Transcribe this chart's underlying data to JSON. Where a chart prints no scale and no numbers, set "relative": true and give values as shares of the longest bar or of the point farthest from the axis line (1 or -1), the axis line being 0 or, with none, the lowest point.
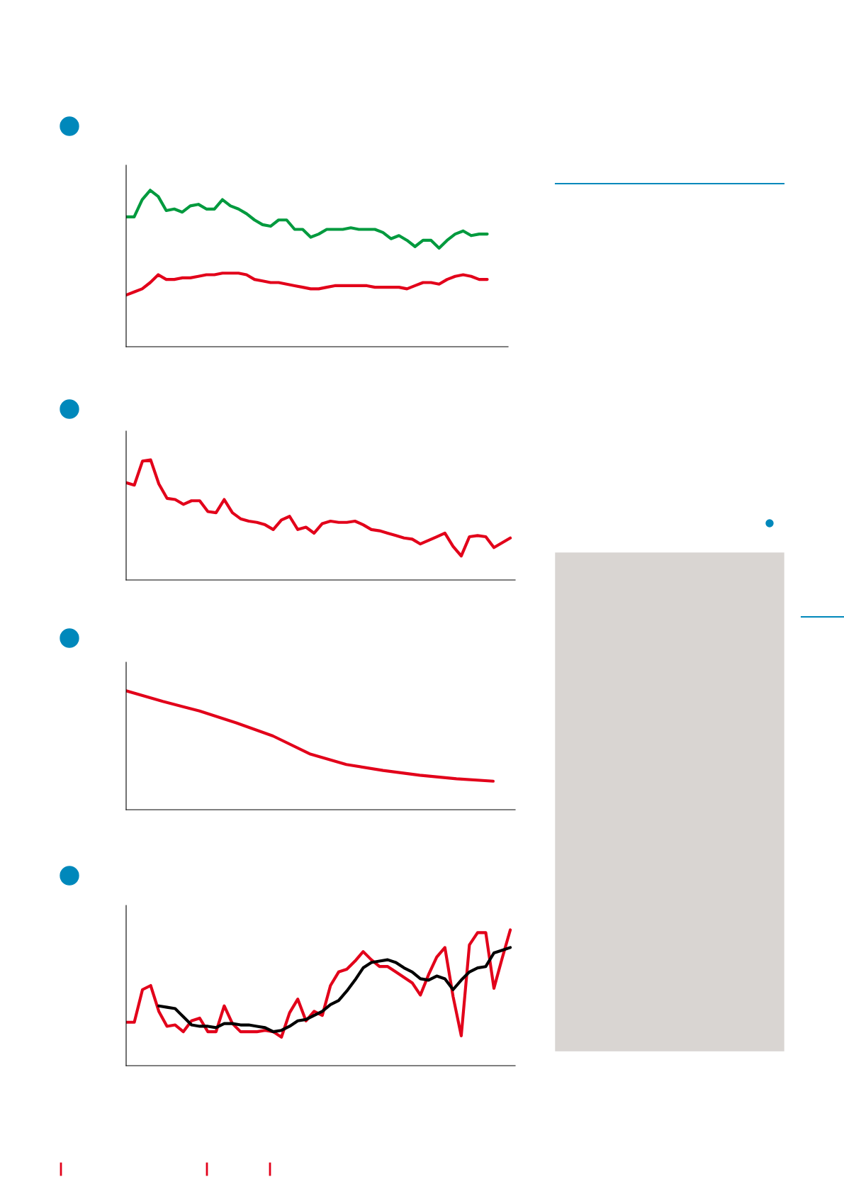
{
  "chart_data": [
    {
      "type": "line",
      "relative": true,
      "categories": [
        null,
        null,
        null,
        null,
        null,
        null,
        null,
        null,
        null,
        null,
        null,
        null,
        null,
        null,
        null,
        null,
        null,
        null,
        null,
        null,
        null,
        null,
        null,
        null,
        null,
        null,
        null,
        null,
        null,
        null,
        null,
        null,
        null,
        null,
        null,
        null,
        null,
        null,
        null,
        null,
        null,
        null,
        null,
        null,
        null,
        null,
        null,
        null
      ],
      "series": [
        {
          "color": "#009a3e",
          "values": [
            0.83,
            0.83,
            0.94,
            1.0,
            0.96,
            0.87,
            0.88,
            0.86,
            0.9,
            0.91,
            0.88,
            0.88,
            0.94,
            0.9,
            0.88,
            0.85,
            0.81,
            0.78,
            0.77,
            0.81,
            0.81,
            0.75,
            0.75,
            0.7,
            0.72,
            0.75,
            0.75,
            0.75,
            0.76,
            0.75,
            0.75,
            0.75,
            0.73,
            0.69,
            0.71,
            0.68,
            0.64,
            0.68,
            0.68,
            0.63,
            0.68,
            0.72,
            0.74,
            0.71,
            0.72,
            0.72,
            null,
            null
          ]
        },
        {
          "color": "#e2001a",
          "values": [
            0.33,
            0.35,
            0.37,
            0.41,
            0.46,
            0.43,
            0.43,
            0.44,
            0.44,
            0.45,
            0.46,
            0.46,
            0.47,
            0.47,
            0.47,
            0.46,
            0.43,
            0.42,
            0.41,
            0.41,
            0.4,
            0.39,
            0.38,
            0.37,
            0.37,
            0.38,
            0.39,
            0.39,
            0.39,
            0.39,
            0.39,
            0.38,
            0.38,
            0.38,
            0.38,
            0.37,
            0.39,
            0.41,
            0.41,
            0.4,
            0.43,
            0.45,
            0.46,
            0.45,
            0.43,
            0.43,
            null,
            null
          ]
        }
      ]
    },
    {
      "type": "line",
      "relative": true,
      "categories": [
        null,
        null,
        null,
        null,
        null,
        null,
        null,
        null,
        null,
        null,
        null,
        null,
        null,
        null,
        null,
        null,
        null,
        null,
        null,
        null,
        null,
        null,
        null,
        null,
        null,
        null,
        null,
        null,
        null,
        null,
        null,
        null,
        null,
        null,
        null,
        null,
        null,
        null,
        null,
        null,
        null,
        null,
        null,
        null,
        null,
        null,
        null,
        null
      ],
      "series": [
        {
          "color": "#e2001a",
          "values": [
            0.81,
            0.79,
            0.99,
            1.0,
            0.8,
            0.68,
            0.67,
            0.63,
            0.66,
            0.66,
            0.57,
            0.56,
            0.67,
            0.56,
            0.51,
            0.49,
            0.48,
            0.46,
            0.42,
            0.5,
            0.53,
            0.42,
            0.44,
            0.39,
            0.47,
            0.49,
            0.48,
            0.48,
            0.49,
            0.46,
            0.42,
            0.41,
            0.39,
            0.37,
            0.35,
            0.34,
            0.3,
            0.33,
            0.36,
            0.39,
            0.28,
            0.2,
            0.36,
            0.37,
            0.36,
            0.27,
            0.31,
            0.35
          ]
        }
      ]
    },
    {
      "type": "line",
      "relative": true,
      "categories": [
        null,
        null,
        null,
        null,
        null,
        null,
        null,
        null,
        null,
        null,
        null
      ],
      "series": [
        {
          "color": "#e2001a",
          "values": [
            1.0,
            0.91,
            0.83,
            0.73,
            0.62,
            0.47,
            0.38,
            0.33,
            0.29,
            0.26,
            0.24
          ]
        }
      ]
    },
    {
      "type": "line",
      "relative": true,
      "categories": [
        null,
        null,
        null,
        null,
        null,
        null,
        null,
        null,
        null,
        null,
        null,
        null,
        null,
        null,
        null,
        null,
        null,
        null,
        null,
        null,
        null,
        null,
        null,
        null,
        null,
        null,
        null,
        null,
        null,
        null,
        null,
        null,
        null,
        null,
        null,
        null,
        null,
        null,
        null,
        null,
        null,
        null,
        null,
        null,
        null,
        null,
        null,
        null
      ],
      "series": [
        {
          "color": "#e2001a",
          "values": [
            0.32,
            0.32,
            0.56,
            0.59,
            0.4,
            0.29,
            0.3,
            0.25,
            0.33,
            0.35,
            0.25,
            0.25,
            0.44,
            0.31,
            0.25,
            0.25,
            0.25,
            0.26,
            0.25,
            0.21,
            0.39,
            0.49,
            0.33,
            0.4,
            0.37,
            0.59,
            0.69,
            0.71,
            0.77,
            0.84,
            0.78,
            0.73,
            0.73,
            0.69,
            0.65,
            0.61,
            0.52,
            0.67,
            0.8,
            0.87,
            0.51,
            0.22,
            0.89,
            0.98,
            0.98,
            0.57,
            0.79,
            1.0
          ]
        },
        {
          "color": "#000000",
          "values": [
            null,
            null,
            null,
            null,
            0.44,
            0.43,
            0.42,
            0.36,
            0.3,
            0.29,
            0.29,
            0.28,
            0.31,
            0.31,
            0.3,
            0.3,
            0.29,
            0.28,
            0.25,
            0.26,
            0.29,
            0.33,
            0.34,
            0.37,
            0.4,
            0.45,
            0.48,
            0.55,
            0.63,
            0.72,
            0.76,
            0.77,
            0.78,
            0.76,
            0.72,
            0.69,
            0.64,
            0.63,
            0.66,
            0.64,
            0.56,
            0.63,
            0.69,
            0.72,
            0.73,
            0.83,
            0.85,
            0.87
          ]
        }
      ]
    }
  ]
}
